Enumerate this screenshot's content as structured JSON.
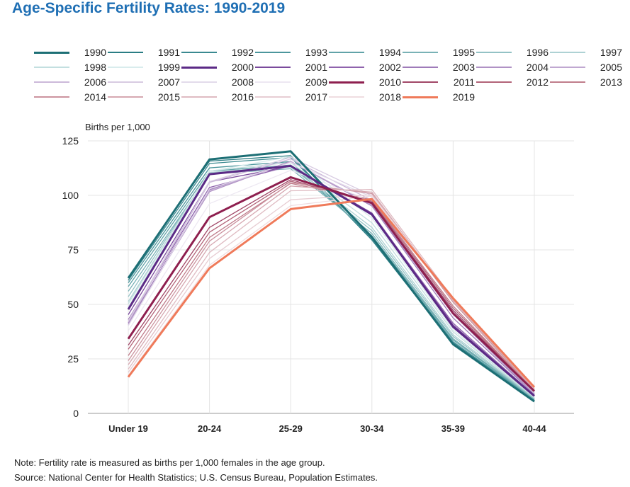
{
  "title": "Age-Specific Fertility Rates: 1990-2019",
  "note": "Note: Fertility rate is measured as births per 1,000 females in the age group.",
  "source": "Source: National Center for Health Statistics; U.S. Census Bureau, Population Estimates.",
  "chart_data": {
    "type": "line",
    "title": "Age-Specific Fertility Rates: 1990-2019",
    "ylabel": "Births per 1,000",
    "xlabel": "",
    "categories": [
      "Under 19",
      "20-24",
      "25-29",
      "30-34",
      "35-39",
      "40-44"
    ],
    "ylim": [
      0,
      125
    ],
    "yticks": [
      0,
      25,
      50,
      75,
      100,
      125
    ],
    "grid": true,
    "legend_position": "top",
    "series": [
      {
        "name": "1990",
        "color": "#1d6f75",
        "values": [
          62,
          116.5,
          120.2,
          80.8,
          31.7,
          5.5
        ]
      },
      {
        "name": "1991",
        "color": "#2a7d84",
        "values": [
          62.5,
          115.7,
          118.2,
          79.5,
          32.0,
          5.5
        ]
      },
      {
        "name": "1992",
        "color": "#3a8990",
        "values": [
          61,
          114.6,
          117.4,
          80.2,
          32.5,
          5.9
        ]
      },
      {
        "name": "1993",
        "color": "#4b969c",
        "values": [
          59.9,
          112.6,
          115.5,
          80.8,
          32.9,
          6.1
        ]
      },
      {
        "name": "1994",
        "color": "#61a3a8",
        "values": [
          58.2,
          111.1,
          113.9,
          81.5,
          33.7,
          6.4
        ]
      },
      {
        "name": "1995",
        "color": "#79b2b6",
        "values": [
          56.0,
          109.8,
          112.2,
          82.5,
          34.3,
          6.6
        ]
      },
      {
        "name": "1996",
        "color": "#93c2c5",
        "values": [
          53.5,
          110.4,
          113.1,
          83.9,
          35.3,
          6.8
        ]
      },
      {
        "name": "1997",
        "color": "#aed2d4",
        "values": [
          51.3,
          110.4,
          113.8,
          85.3,
          36.1,
          7.1
        ]
      },
      {
        "name": "1998",
        "color": "#c3dfe0",
        "values": [
          50.3,
          111.2,
          115.1,
          87.4,
          37.4,
          7.3
        ]
      },
      {
        "name": "1999",
        "color": "#d9eced",
        "values": [
          48.8,
          111.0,
          117.8,
          89.6,
          38.3,
          7.4
        ]
      },
      {
        "name": "2000",
        "color": "#5b2a86",
        "values": [
          47.7,
          109.7,
          113.5,
          91.2,
          39.7,
          8.0
        ]
      },
      {
        "name": "2001",
        "color": "#7a4a9c",
        "values": [
          45.3,
          106.2,
          113.4,
          91.9,
          40.6,
          8.1
        ]
      },
      {
        "name": "2002",
        "color": "#8f63ad",
        "values": [
          43.0,
          103.6,
          113.6,
          91.5,
          41.4,
          8.3
        ]
      },
      {
        "name": "2003",
        "color": "#9f7bb9",
        "values": [
          41.6,
          102.6,
          115.6,
          95.1,
          43.8,
          8.7
        ]
      },
      {
        "name": "2004",
        "color": "#b092c5",
        "values": [
          41.1,
          101.7,
          115.5,
          95.3,
          45.4,
          8.9
        ]
      },
      {
        "name": "2005",
        "color": "#c0a8d1",
        "values": [
          40.5,
          102.2,
          115.5,
          95.8,
          46.3,
          9.1
        ]
      },
      {
        "name": "2006",
        "color": "#ccb9da",
        "values": [
          41.9,
          105.9,
          116.7,
          97.7,
          47.3,
          9.4
        ]
      },
      {
        "name": "2007",
        "color": "#d8cbe2",
        "values": [
          42.5,
          106.3,
          117.5,
          99.9,
          47.5,
          9.5
        ]
      },
      {
        "name": "2008",
        "color": "#e3dbeb",
        "values": [
          40.2,
          103.0,
          115.1,
          99.3,
          46.8,
          9.9
        ]
      },
      {
        "name": "2009",
        "color": "#ede8f2",
        "values": [
          37.9,
          96.2,
          111.5,
          97.5,
          46.1,
          10.0
        ]
      },
      {
        "name": "2010",
        "color": "#8e1f4f",
        "values": [
          34.2,
          90.0,
          108.3,
          96.5,
          45.9,
          10.2
        ]
      },
      {
        "name": "2011",
        "color": "#a14767",
        "values": [
          31.3,
          85.3,
          107.2,
          96.5,
          47.2,
          10.3
        ]
      },
      {
        "name": "2012",
        "color": "#b26378",
        "values": [
          29.4,
          83.1,
          106.5,
          97.3,
          48.3,
          10.4
        ]
      },
      {
        "name": "2013",
        "color": "#c07d8b",
        "values": [
          26.5,
          80.7,
          105.5,
          98.0,
          49.3,
          10.4
        ]
      },
      {
        "name": "2014",
        "color": "#cc939f",
        "values": [
          24.2,
          79.0,
          105.8,
          100.8,
          51.0,
          10.6
        ]
      },
      {
        "name": "2015",
        "color": "#d6a8b1",
        "values": [
          22.3,
          76.8,
          104.3,
          101.5,
          51.8,
          11.0
        ]
      },
      {
        "name": "2016",
        "color": "#dfbbc2",
        "values": [
          20.3,
          73.8,
          102.1,
          102.7,
          52.7,
          11.4
        ]
      },
      {
        "name": "2017",
        "color": "#e7cdd3",
        "values": [
          18.8,
          71.0,
          98.0,
          100.3,
          52.3,
          11.6
        ]
      },
      {
        "name": "2018",
        "color": "#efdde1",
        "values": [
          17.4,
          68.0,
          95.3,
          99.7,
          52.6,
          11.8
        ]
      },
      {
        "name": "2019",
        "color": "#ef7a5a",
        "values": [
          16.7,
          66.6,
          93.7,
          98.3,
          52.8,
          12.0
        ]
      }
    ]
  }
}
